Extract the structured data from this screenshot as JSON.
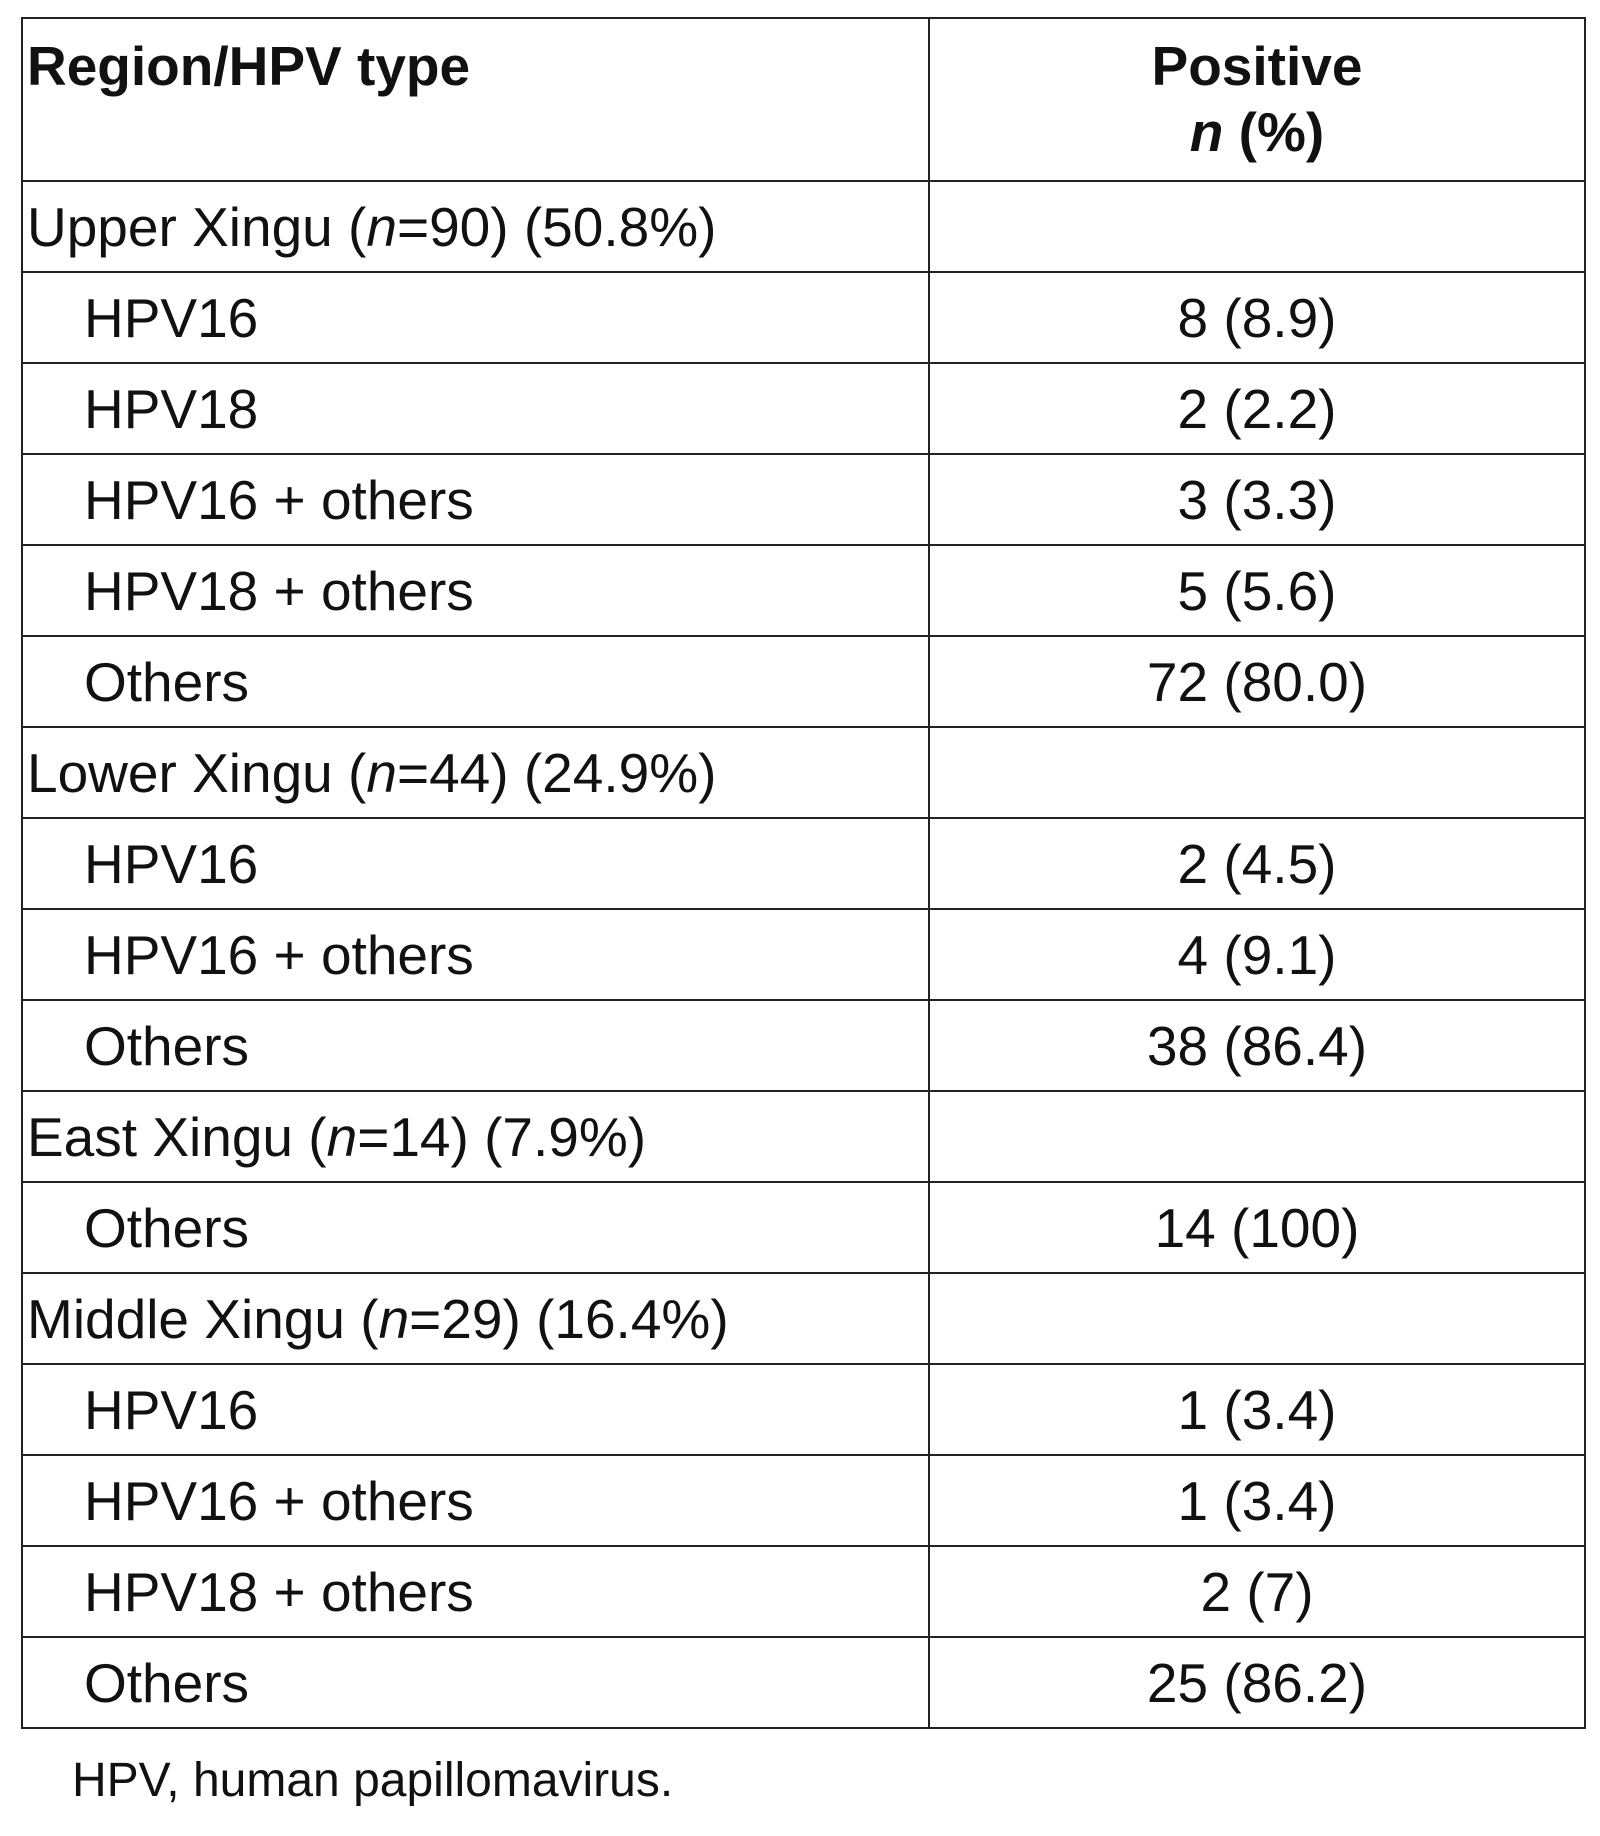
{
  "table": {
    "header": {
      "col1": "Region/HPV type",
      "col2_line1": "Positive",
      "col2_n": "n",
      "col2_rest": " (%)"
    },
    "regions": [
      {
        "name": "Upper Xingu (",
        "n_label": "n",
        "suffix": "=90) (50.8%)",
        "rows": [
          {
            "type": "HPV16",
            "value": "8 (8.9)"
          },
          {
            "type": "HPV18",
            "value": "2 (2.2)"
          },
          {
            "type": "HPV16 + others",
            "value": "3 (3.3)"
          },
          {
            "type": "HPV18 + others",
            "value": "5 (5.6)"
          },
          {
            "type": "Others",
            "value": "72 (80.0)"
          }
        ]
      },
      {
        "name": "Lower Xingu (",
        "n_label": "n",
        "suffix": "=44) (24.9%)",
        "rows": [
          {
            "type": "HPV16",
            "value": "2 (4.5)"
          },
          {
            "type": "HPV16 + others",
            "value": "4 (9.1)"
          },
          {
            "type": "Others",
            "value": "38 (86.4)"
          }
        ]
      },
      {
        "name": "East Xingu (",
        "n_label": "n",
        "suffix": "=14) (7.9%)",
        "rows": [
          {
            "type": "Others",
            "value": "14 (100)"
          }
        ]
      },
      {
        "name": "Middle Xingu (",
        "n_label": "n",
        "suffix": "=29) (16.4%)",
        "rows": [
          {
            "type": "HPV16",
            "value": "1 (3.4)"
          },
          {
            "type": "HPV16 + others",
            "value": "1 (3.4)"
          },
          {
            "type": "HPV18 + others",
            "value": "2 (7)"
          },
          {
            "type": "Others",
            "value": "25 (86.2)"
          }
        ]
      }
    ]
  },
  "footnote": "HPV, human papillomavirus."
}
